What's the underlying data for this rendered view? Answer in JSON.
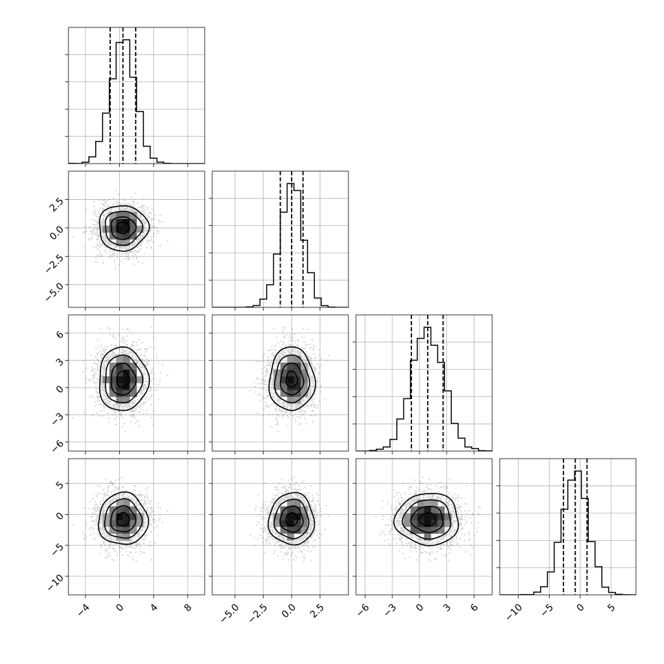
{
  "chart_data": {
    "type": "corner",
    "n_params": 4,
    "colors": {
      "line": "#000000",
      "grid": "#b0b0b0",
      "points": "#555555",
      "density_max": "#000000"
    },
    "params": [
      {
        "range": [
          -6,
          10
        ],
        "ticks": [
          -4,
          0,
          4,
          8
        ],
        "tick_labels": [
          "−4",
          "0",
          "4",
          "8"
        ],
        "mean": 0.4,
        "std": 1.45,
        "quantiles": [
          -1.1,
          0.4,
          1.9
        ]
      },
      {
        "range": [
          -7,
          5
        ],
        "ticks": [
          -5.0,
          -2.5,
          0.0,
          2.5
        ],
        "tick_labels": [
          "−5.0",
          "−2.5",
          "0.0",
          "2.5"
        ],
        "mean": 0.0,
        "std": 1.0,
        "quantiles": [
          -1.0,
          0.0,
          1.0
        ]
      },
      {
        "range": [
          -7,
          8
        ],
        "ticks": [
          -6,
          -3,
          0,
          3,
          6
        ],
        "tick_labels": [
          "−6",
          "−3",
          "0",
          "3",
          "6"
        ],
        "mean": 0.9,
        "std": 1.75,
        "quantiles": [
          -0.9,
          0.9,
          2.6
        ]
      },
      {
        "range": [
          -13,
          9
        ],
        "ticks": [
          -10,
          -5,
          0,
          5
        ],
        "tick_labels": [
          "−10",
          "−5",
          "0",
          "5"
        ],
        "mean": -0.8,
        "std": 2.1,
        "quantiles": [
          -2.7,
          -0.8,
          1.1
        ]
      }
    ],
    "hist_bins": 20,
    "samples": 5000,
    "contour_levels_sigma": [
      0.5,
      1.0,
      1.5,
      2.0
    ],
    "grid": true
  }
}
